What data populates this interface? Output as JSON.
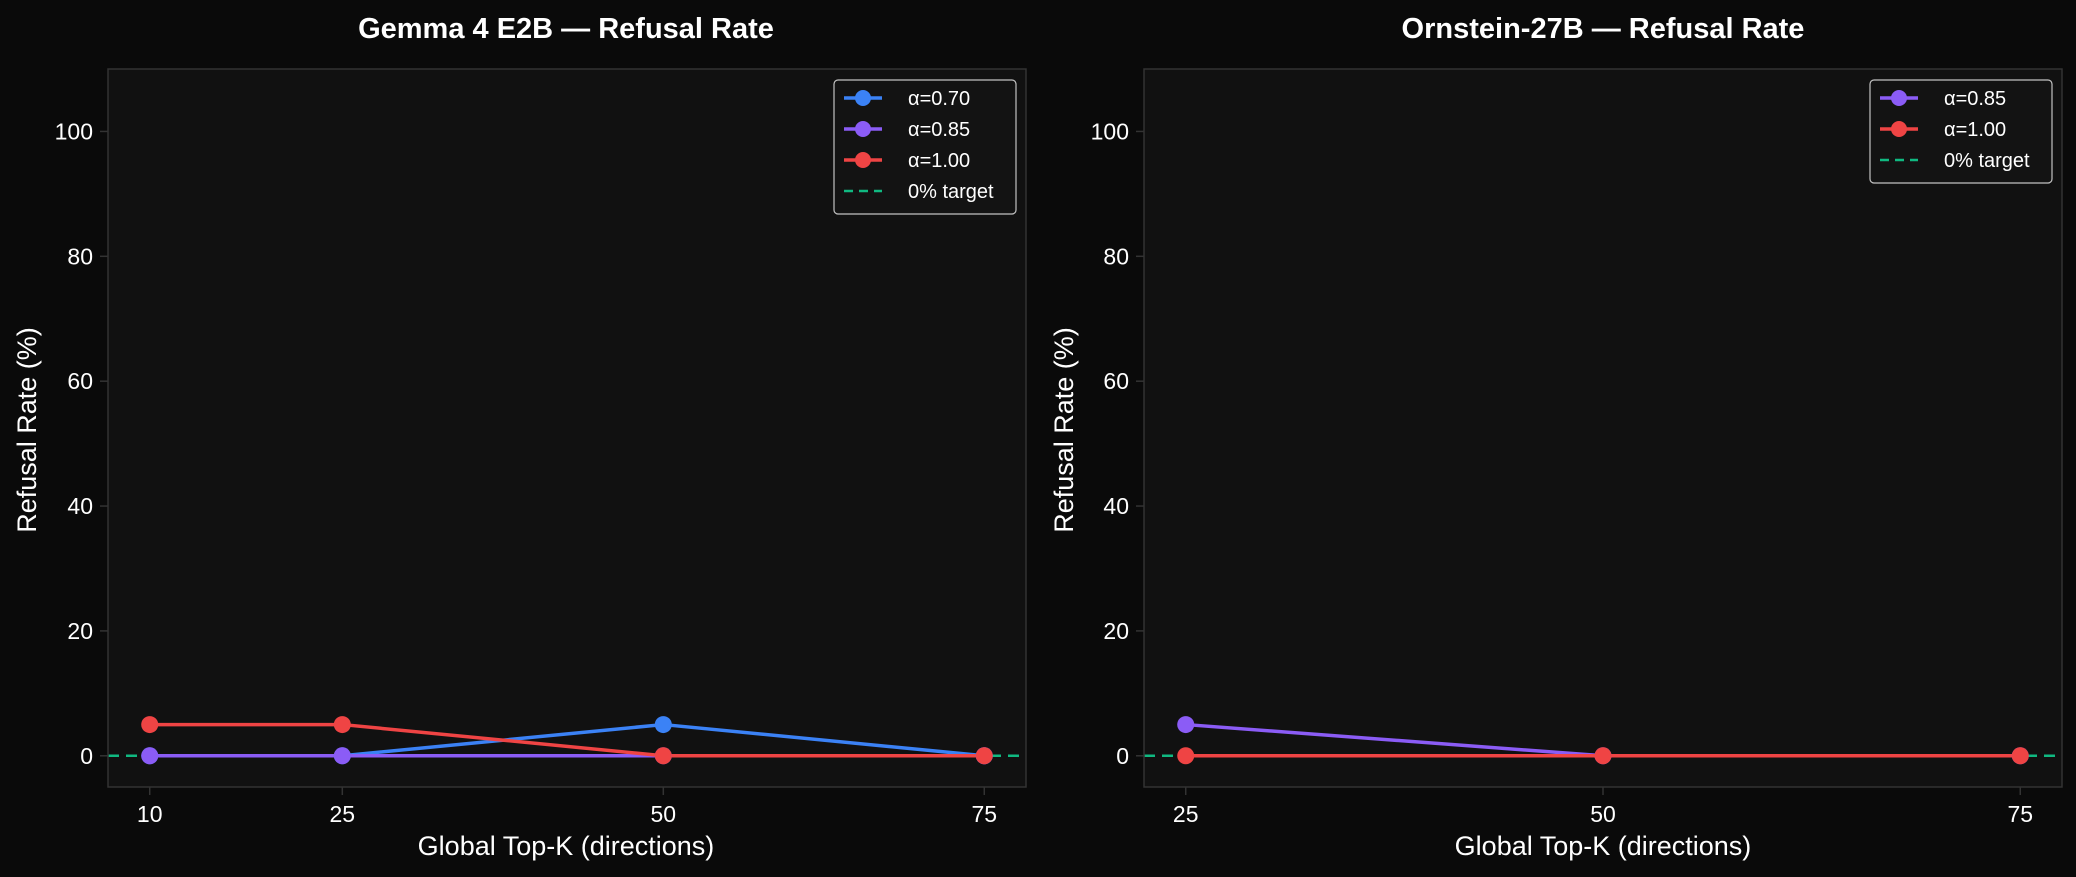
{
  "colors": {
    "figure_bg": "#0a0a0a",
    "axes_bg": "#111111",
    "spine": "#333333",
    "text": "#ffffff",
    "alpha_070": "#3b82f6",
    "alpha_085": "#8b5cf6",
    "alpha_100": "#ef4444",
    "target": "#10b981"
  },
  "chart_data": [
    {
      "type": "line",
      "title": "Gemma 4 E2B — Refusal Rate",
      "xlabel": "Global Top-K (directions)",
      "ylabel": "Refusal Rate (%)",
      "x": [
        10,
        25,
        50,
        75
      ],
      "xticks": [
        "10",
        "25",
        "50",
        "75"
      ],
      "yticks": [
        "0",
        "20",
        "40",
        "60",
        "80",
        "100"
      ],
      "xlim": [
        6.75,
        78.25
      ],
      "ylim": [
        -5,
        110
      ],
      "grid": false,
      "legend_position": "top-right",
      "series": [
        {
          "name": "α=0.70",
          "color_key": "alpha_070",
          "values": [
            0,
            0,
            5,
            0
          ]
        },
        {
          "name": "α=0.85",
          "color_key": "alpha_085",
          "values": [
            0,
            0,
            0,
            0
          ]
        },
        {
          "name": "α=1.00",
          "color_key": "alpha_100",
          "values": [
            5,
            5,
            0,
            0
          ]
        }
      ],
      "reference_line": {
        "name": "0% target",
        "y": 0,
        "color_key": "target",
        "style": "dashed"
      }
    },
    {
      "type": "line",
      "title": "Ornstein-27B — Refusal Rate",
      "xlabel": "Global Top-K (directions)",
      "ylabel": "Refusal Rate (%)",
      "x": [
        25,
        50,
        75
      ],
      "xticks": [
        "25",
        "50",
        "75"
      ],
      "yticks": [
        "0",
        "20",
        "40",
        "60",
        "80",
        "100"
      ],
      "xlim": [
        22.5,
        77.5
      ],
      "ylim": [
        -5,
        110
      ],
      "grid": false,
      "legend_position": "top-right",
      "series": [
        {
          "name": "α=0.85",
          "color_key": "alpha_085",
          "values": [
            5,
            0,
            0
          ]
        },
        {
          "name": "α=1.00",
          "color_key": "alpha_100",
          "values": [
            0,
            0,
            0
          ]
        }
      ],
      "reference_line": {
        "name": "0% target",
        "y": 0,
        "color_key": "target",
        "style": "dashed"
      }
    }
  ]
}
